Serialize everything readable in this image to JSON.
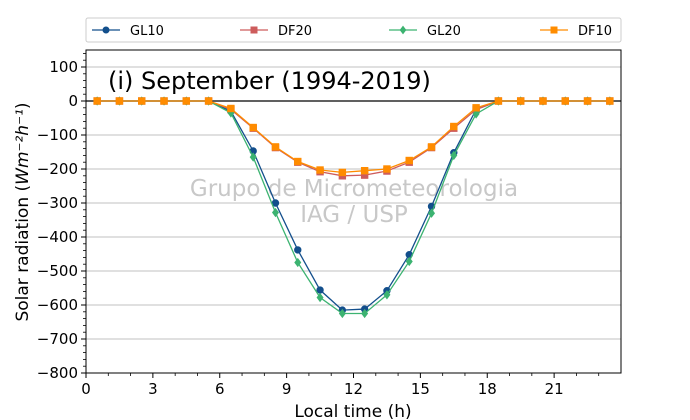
{
  "chart_data": {
    "type": "line",
    "title": "(i) September (1994-2019)",
    "watermark": [
      "Grupo de Micrometeorologia",
      "IAG / USP"
    ],
    "xlabel": "Local time (h)",
    "ylabel": "Solar radiation (Wm⁻²h⁻¹)",
    "xlim": [
      0,
      24
    ],
    "ylim": [
      -800,
      150
    ],
    "xticks": [
      0,
      3,
      6,
      9,
      12,
      15,
      18,
      21
    ],
    "yticks": [
      -800,
      -700,
      -600,
      -500,
      -400,
      -300,
      -200,
      -100,
      0,
      100
    ],
    "x": [
      0.5,
      1.5,
      2.5,
      3.5,
      4.5,
      5.5,
      6.5,
      7.5,
      8.5,
      9.5,
      10.5,
      11.5,
      12.5,
      13.5,
      14.5,
      15.5,
      16.5,
      17.5,
      18.5,
      19.5,
      20.5,
      21.5,
      22.5,
      23.5
    ],
    "grid": "horizontal",
    "legend_position": "top (outside)",
    "series": [
      {
        "name": "GL10",
        "color": "#134f8c",
        "marker": "circle",
        "values": [
          0,
          0,
          0,
          0,
          0,
          0,
          -30,
          -147,
          -300,
          -438,
          -556,
          -615,
          -612,
          -558,
          -452,
          -310,
          -152,
          -25,
          0,
          0,
          0,
          0,
          0,
          0
        ]
      },
      {
        "name": "DF20",
        "color": "#cd5c5c",
        "marker": "square",
        "values": [
          0,
          0,
          0,
          0,
          0,
          0,
          -25,
          -80,
          -137,
          -180,
          -208,
          -220,
          -218,
          -206,
          -180,
          -137,
          -80,
          -25,
          0,
          0,
          0,
          0,
          0,
          0
        ]
      },
      {
        "name": "GL20",
        "color": "#3cb371",
        "marker": "diamond",
        "values": [
          0,
          0,
          0,
          0,
          0,
          0,
          -35,
          -165,
          -328,
          -475,
          -578,
          -625,
          -625,
          -570,
          -472,
          -330,
          -160,
          -38,
          0,
          0,
          0,
          0,
          0,
          0
        ]
      },
      {
        "name": "DF10",
        "color": "#ff8c00",
        "marker": "square",
        "values": [
          0,
          0,
          0,
          0,
          0,
          0,
          -22,
          -78,
          -135,
          -178,
          -203,
          -210,
          -205,
          -200,
          -175,
          -135,
          -75,
          -20,
          0,
          0,
          0,
          0,
          0,
          0
        ]
      }
    ]
  }
}
